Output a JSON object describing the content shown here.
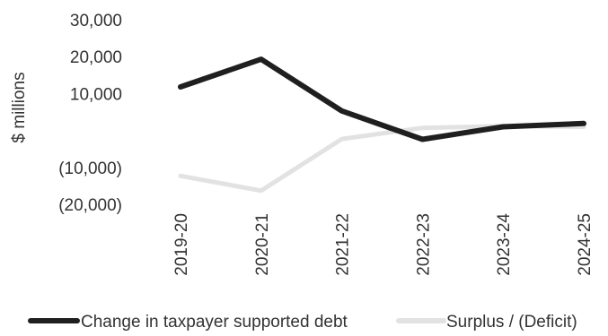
{
  "chart_data": {
    "type": "line",
    "title": "",
    "ylabel": "$ millions",
    "xlabel": "",
    "categories": [
      "2019-20",
      "2020-21",
      "2021-22",
      "2022-23",
      "2023-24",
      "2024-25"
    ],
    "y_ticks": [
      "30,000",
      "20,000",
      "10,000",
      "",
      "(10,000)",
      "(20,000)"
    ],
    "y_tick_values": [
      30000,
      20000,
      10000,
      0,
      -10000,
      -20000
    ],
    "ylim": [
      -20000,
      30000
    ],
    "grid": false,
    "legend_position": "bottom",
    "series": [
      {
        "name": "Change in taxpayer supported debt",
        "values": [
          11800,
          19300,
          5300,
          -2400,
          1000,
          1900
        ],
        "color": "#1f1f1f"
      },
      {
        "name": "Surplus / (Deficit)",
        "values": [
          -12300,
          -16300,
          -2300,
          700,
          1200,
          1000
        ],
        "color": "#e2e2e2"
      }
    ]
  }
}
